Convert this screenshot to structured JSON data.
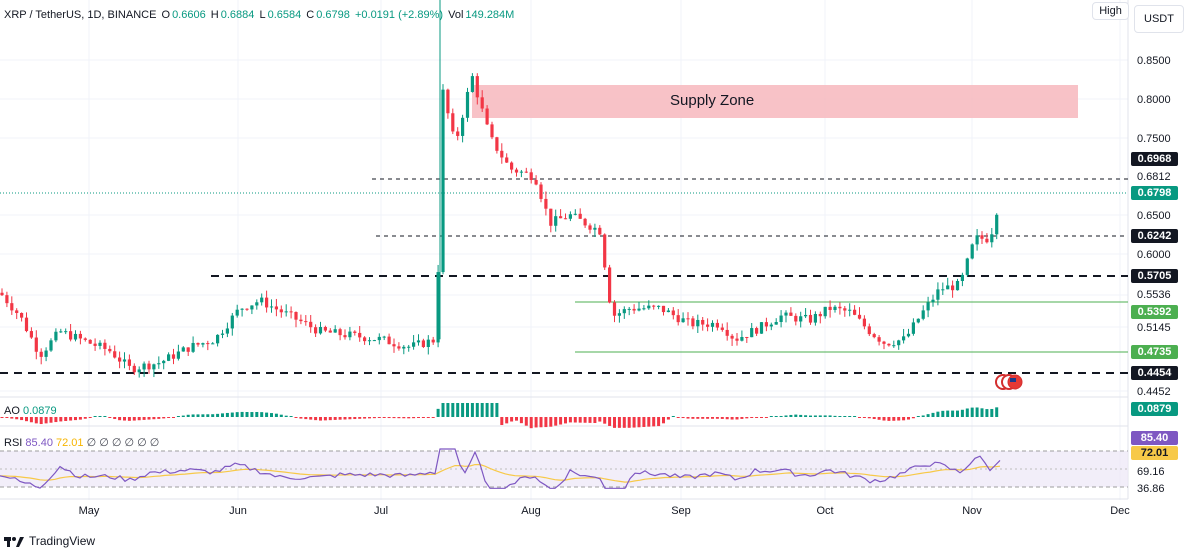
{
  "header": {
    "symbol": "XRP / TetherUS, 1D, BINANCE",
    "open_label": "O",
    "open": "0.6606",
    "high_label": "H",
    "high": "0.6884",
    "low_label": "L",
    "low": "0.6584",
    "close_label": "C",
    "close": "0.6798",
    "change": "+0.0191 (+2.89%)",
    "vol_label": "Vol",
    "vol": "149.284M"
  },
  "toolbar": {
    "high_button": "High",
    "currency_button": "USDT"
  },
  "annotation": {
    "supply_zone": "Supply Zone"
  },
  "price_axis": {
    "labels": [
      "0.8500",
      "0.8000",
      "0.7500",
      "0.6812",
      "0.6500",
      "0.6000",
      "0.5536",
      "0.5145",
      "0.4452"
    ],
    "tags": [
      {
        "value": "0.6968",
        "style": "dark"
      },
      {
        "value": "0.6798",
        "style": "teal"
      },
      {
        "value": "0.6242",
        "style": "dark"
      },
      {
        "value": "0.5705",
        "style": "dark"
      },
      {
        "value": "0.5392",
        "style": "green"
      },
      {
        "value": "0.4735",
        "style": "green"
      },
      {
        "value": "0.4454",
        "style": "dark"
      }
    ]
  },
  "ao": {
    "name": "AO",
    "value": "0.0879",
    "tag": "0.0879"
  },
  "rsi": {
    "name": "RSI",
    "value": "85.40",
    "ma": "72.01",
    "placeholders": "∅ ∅ ∅ ∅ ∅ ∅",
    "tags": [
      "85.40",
      "72.01"
    ],
    "labels": [
      "69.16",
      "36.86"
    ]
  },
  "time_axis": [
    "May",
    "Jun",
    "Jul",
    "Aug",
    "Sep",
    "Oct",
    "Nov",
    "Dec"
  ],
  "footer": {
    "brand": "TradingView"
  },
  "colors": {
    "up": "#089981",
    "down": "#f23645",
    "supply_zone": "#f7b7bd",
    "support_line": "#4caf50",
    "rsi_line": "#7e57c2",
    "rsi_ma": "#f7c948"
  }
}
